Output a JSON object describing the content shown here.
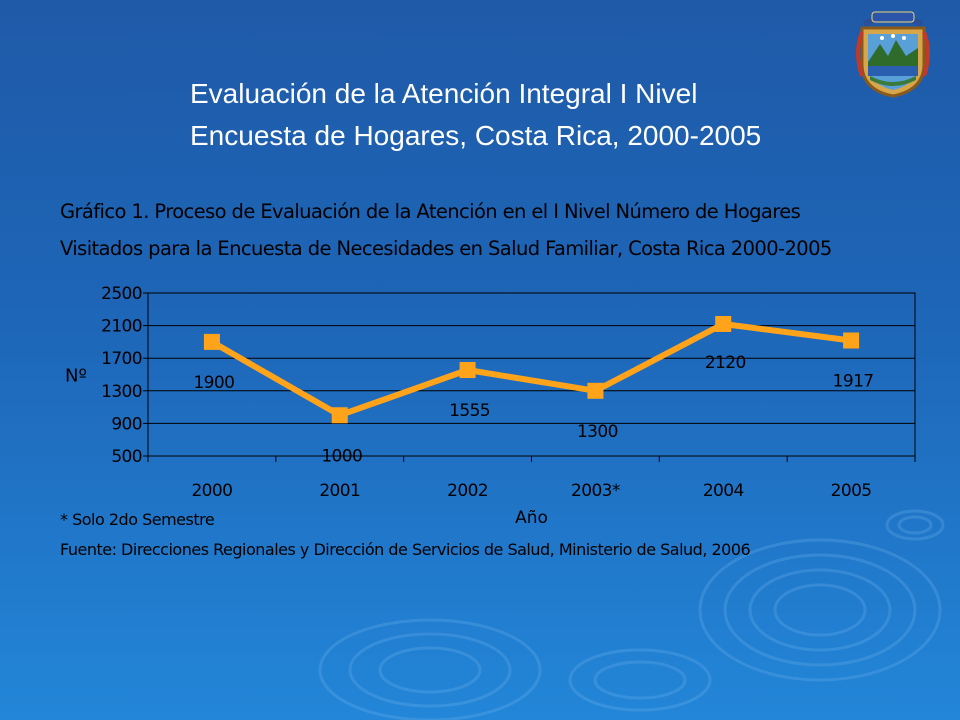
{
  "slide": {
    "title_line1": "Evaluación  de la Atención Integral I Nivel",
    "title_line2": "Encuesta de Hogares, Costa Rica, 2000-2005"
  },
  "figure": {
    "caption_line1": "Gráfico 1. Proceso de Evaluación de la Atención en el I Nivel Número de Hogares",
    "caption_line2": "Visitados para la Encuesta de Necesidades en Salud Familiar, Costa Rica 2000-2005",
    "footnote": "* Solo 2do Semestre",
    "source": "Fuente: Direcciones Regionales y Dirección de Servicios de Salud, Ministerio de Salud, 2006"
  },
  "colors": {
    "background": "#1e66b8",
    "series": "#ffa31a",
    "text_dark": "#000000",
    "title": "#ffffff"
  },
  "emblem": {
    "icon": "costa-rica-coat-of-arms-icon"
  },
  "chart_data": {
    "type": "line",
    "title": "",
    "xlabel": "Año",
    "ylabel": "Nº",
    "categories": [
      "2000",
      "2001",
      "2002",
      "2003*",
      "2004",
      "2005"
    ],
    "series": [
      {
        "values": [
          1900,
          1000,
          1555,
          1300,
          2120,
          1917
        ]
      }
    ],
    "data_labels": [
      "1900",
      "1000",
      "1555",
      "1300",
      "2120",
      "1917"
    ],
    "ylim": [
      500,
      2500
    ],
    "yticks": [
      500,
      900,
      1300,
      1700,
      2100,
      2500
    ],
    "grid": true,
    "legend": "none"
  }
}
